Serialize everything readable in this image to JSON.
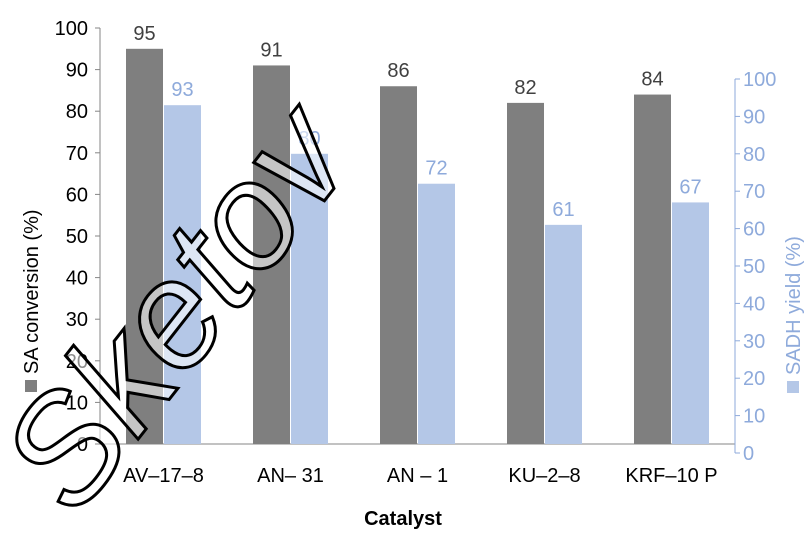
{
  "chart_data": {
    "type": "bar",
    "categories": [
      "AV–17–8",
      "AN– 31",
      "AN – 1",
      "KU–2–8",
      "KRF–10 P"
    ],
    "series": [
      {
        "name": "SA conversion (%)",
        "values": [
          95,
          91,
          86,
          82,
          84
        ],
        "color": "#7f7f7f",
        "axis": "left"
      },
      {
        "name": "SADH yield (%)",
        "values": [
          93,
          80,
          72,
          61,
          67
        ],
        "color": "#b4c7e7",
        "axis": "right"
      }
    ],
    "xlabel": "Catalyst",
    "y_left": {
      "label": "SA conversion (%)",
      "ylim": [
        0,
        100
      ],
      "ticks": [
        0,
        10,
        20,
        30,
        40,
        50,
        60,
        70,
        80,
        90,
        100
      ],
      "color": "#000000"
    },
    "y_right": {
      "label": "SADH yield (%)",
      "ylim": [
        0,
        100
      ],
      "ticks": [
        0,
        10,
        20,
        30,
        40,
        50,
        60,
        70,
        80,
        90,
        100
      ],
      "color": "#8eaadb"
    },
    "grid": false,
    "legend": "none",
    "watermark": "Sketov"
  }
}
